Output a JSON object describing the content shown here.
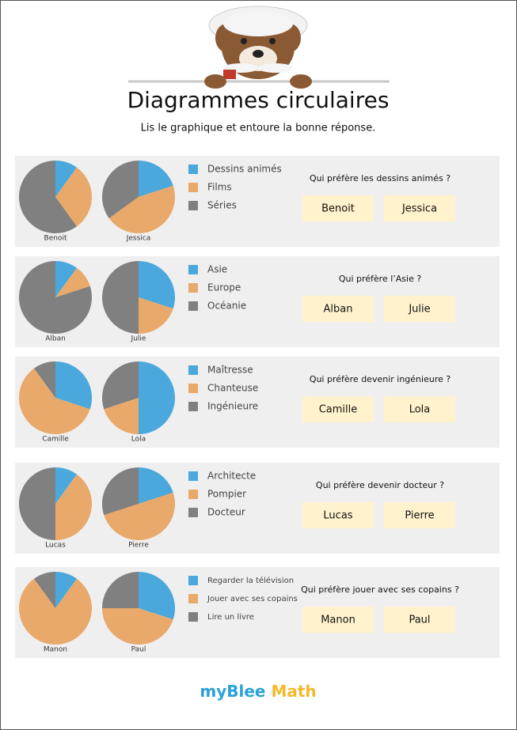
{
  "header": {
    "title": "Diagrammes circulaires",
    "instruction": "Lis le graphique et entoure la bonne réponse."
  },
  "colors": [
    "#4aa8dc",
    "#e9a96b",
    "#808080"
  ],
  "exercises": [
    {
      "categories": [
        "Dessins animés",
        "Films",
        "Séries"
      ],
      "question": "Qui préfère les dessins animés ?",
      "pies": [
        {
          "name": "Benoit",
          "values": [
            10,
            30,
            60
          ]
        },
        {
          "name": "Jessica",
          "values": [
            20,
            45,
            35
          ]
        }
      ],
      "answers": [
        "Benoit",
        "Jessica"
      ]
    },
    {
      "categories": [
        "Asie",
        "Europe",
        "Océanie"
      ],
      "question": "Qui préfère l’Asie ?",
      "pies": [
        {
          "name": "Alban",
          "values": [
            10,
            10,
            80
          ]
        },
        {
          "name": "Julie",
          "values": [
            30,
            20,
            50
          ]
        }
      ],
      "answers": [
        "Alban",
        "Julie"
      ]
    },
    {
      "categories": [
        "Maîtresse",
        "Chanteuse",
        "Ingénieure"
      ],
      "question": "Qui préfère devenir ingénieure ?",
      "pies": [
        {
          "name": "Camille",
          "values": [
            30,
            60,
            10
          ]
        },
        {
          "name": "Lola",
          "values": [
            50,
            20,
            30
          ]
        }
      ],
      "answers": [
        "Camille",
        "Lola"
      ]
    },
    {
      "categories": [
        "Architecte",
        "Pompier",
        "Docteur"
      ],
      "question": "Qui préfère devenir docteur ?",
      "pies": [
        {
          "name": "Lucas",
          "values": [
            10,
            40,
            50
          ]
        },
        {
          "name": "Pierre",
          "values": [
            20,
            50,
            30
          ]
        }
      ],
      "answers": [
        "Lucas",
        "Pierre"
      ]
    },
    {
      "categories": [
        "Regarder la télévision",
        "Jouer avec ses copains",
        "Lire un livre"
      ],
      "question": "Qui préfère jouer avec ses copains ?",
      "pies": [
        {
          "name": "Manon",
          "values": [
            10,
            80,
            10
          ]
        },
        {
          "name": "Paul",
          "values": [
            30,
            45,
            25
          ]
        }
      ],
      "answers": [
        "Manon",
        "Paul"
      ]
    }
  ],
  "footer": {
    "brand": "myBlee",
    "subject": "Math"
  }
}
